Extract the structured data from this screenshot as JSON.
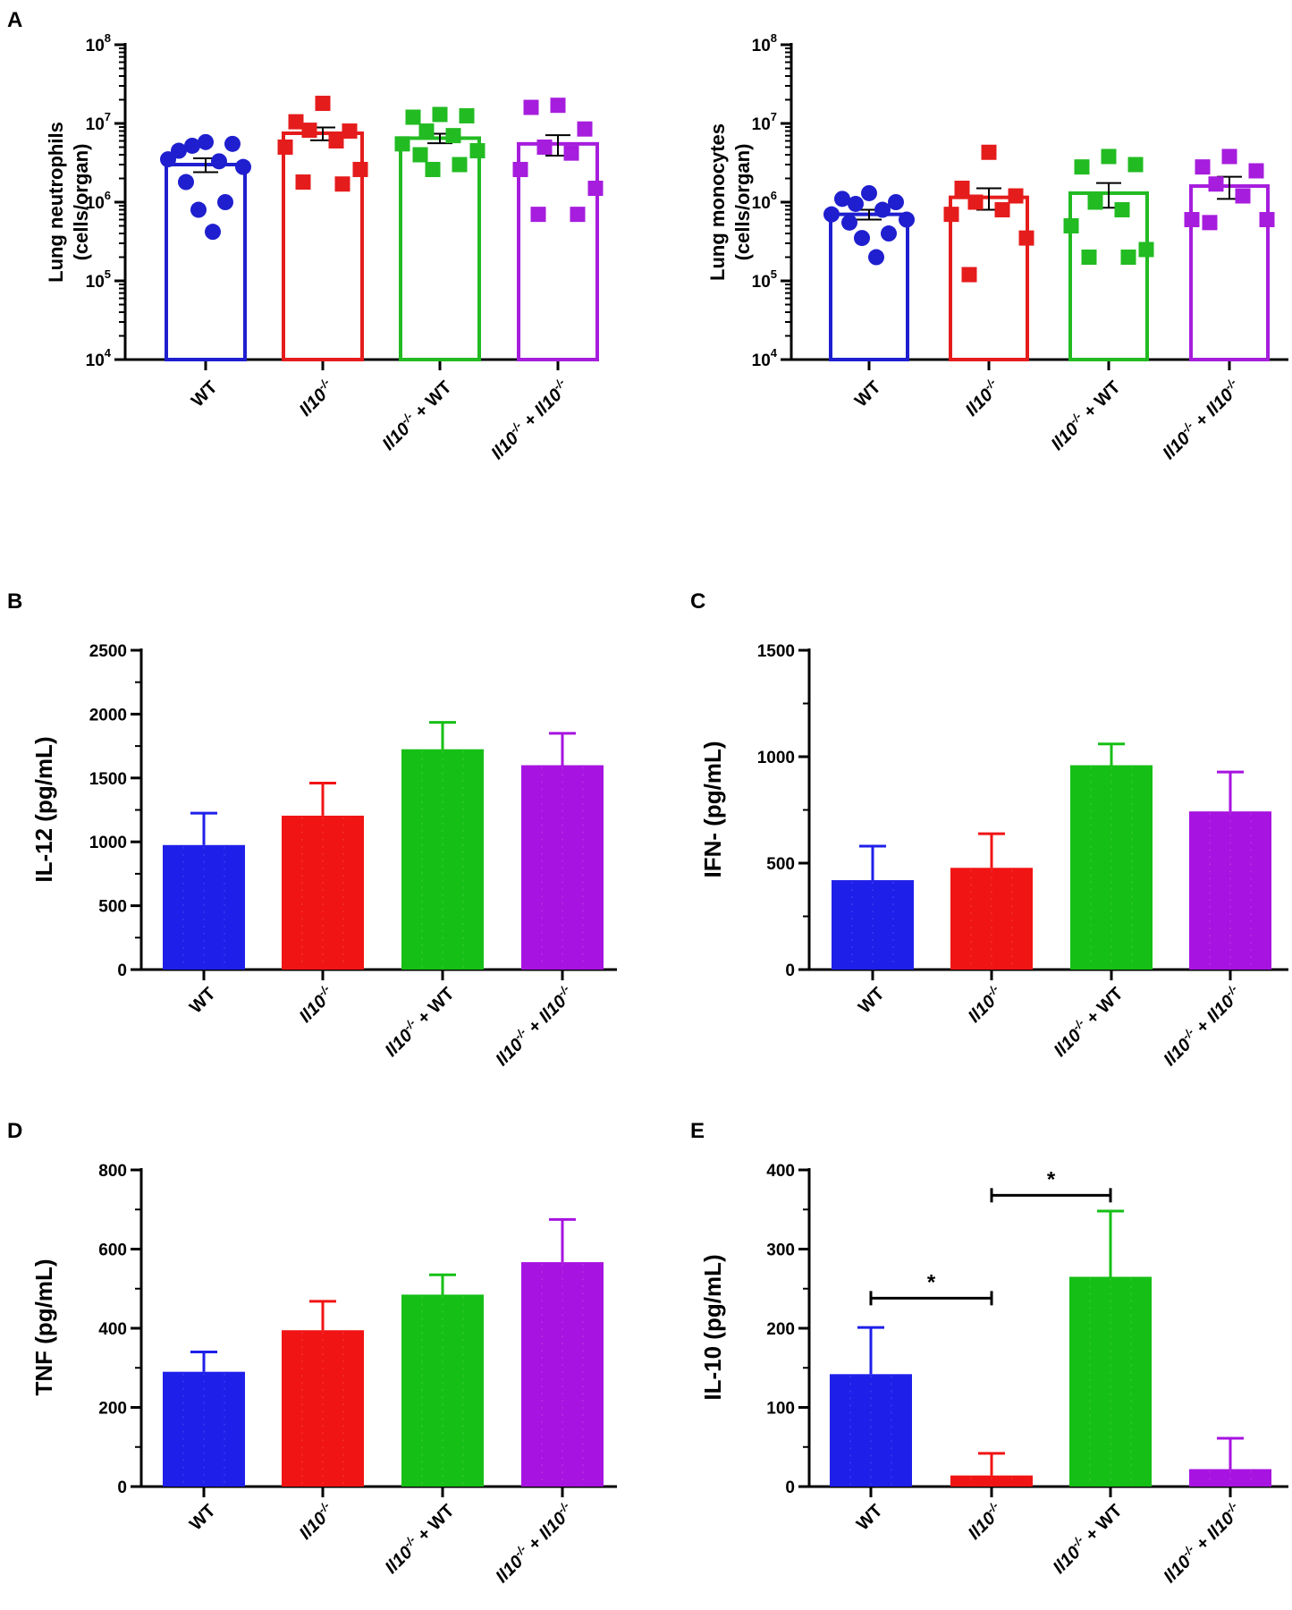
{
  "chart_data": [
    {
      "id": "A-left",
      "panel_label": "A",
      "type": "scatter",
      "yscale": "log",
      "ylabel_lines": [
        "Lung neutrophils",
        "(cells/organ)"
      ],
      "ylim": [
        10000,
        100000000
      ],
      "ytick_labels": [
        {
          "base": "10",
          "exp": "4"
        },
        {
          "base": "10",
          "exp": "5"
        },
        {
          "base": "10",
          "exp": "6"
        },
        {
          "base": "10",
          "exp": "7"
        },
        {
          "base": "10",
          "exp": "8"
        }
      ],
      "categories": [
        "WT",
        "Il10-/-",
        "Il10-/- + WT",
        "Il10-/- + Il10-/-"
      ],
      "series": [
        {
          "name": "WT",
          "color": "#1f1fcf",
          "marker": "circle",
          "mean": 3000000,
          "sem": 600000,
          "points": [
            5800000,
            4500000,
            5500000,
            5200000,
            3300000,
            3500000,
            2800000,
            1800000,
            1000000,
            800000,
            420000
          ]
        },
        {
          "name": "Il10-/-",
          "color": "#e51c1c",
          "marker": "square",
          "mean": 7500000,
          "sem": 1400000,
          "points": [
            18000000,
            10500000,
            8000000,
            8200000,
            6000000,
            5000000,
            2600000,
            1800000,
            1700000
          ]
        },
        {
          "name": "Il10-/- + WT",
          "color": "#22bb22",
          "marker": "square",
          "mean": 6500000,
          "sem": 900000,
          "points": [
            13000000,
            12000000,
            12500000,
            8000000,
            7000000,
            5500000,
            4500000,
            4000000,
            3000000,
            2600000
          ]
        },
        {
          "name": "Il10-/- + Il10-/-",
          "color": "#a61ddd",
          "marker": "square",
          "mean": 5500000,
          "sem": 1600000,
          "points": [
            17000000,
            16000000,
            8500000,
            5000000,
            4200000,
            2600000,
            1500000,
            700000,
            700000
          ]
        }
      ]
    },
    {
      "id": "A-right",
      "panel_label": "",
      "type": "scatter",
      "yscale": "log",
      "ylabel_lines": [
        "Lung monocytes",
        "(cells/organ)"
      ],
      "ylim": [
        10000,
        100000000
      ],
      "ytick_labels": [
        {
          "base": "10",
          "exp": "4"
        },
        {
          "base": "10",
          "exp": "5"
        },
        {
          "base": "10",
          "exp": "6"
        },
        {
          "base": "10",
          "exp": "7"
        },
        {
          "base": "10",
          "exp": "8"
        }
      ],
      "categories": [
        "WT",
        "Il10-/-",
        "Il10-/- + WT",
        "Il10-/- + Il10-/-"
      ],
      "series": [
        {
          "name": "WT",
          "color": "#1f1fcf",
          "marker": "circle",
          "mean": 700000,
          "sem": 100000,
          "points": [
            1300000,
            1100000,
            1000000,
            950000,
            800000,
            700000,
            600000,
            550000,
            400000,
            350000,
            200000
          ]
        },
        {
          "name": "Il10-/-",
          "color": "#e51c1c",
          "marker": "square",
          "mean": 1150000,
          "sem": 350000,
          "points": [
            4300000,
            1500000,
            1200000,
            1000000,
            800000,
            700000,
            350000,
            120000
          ]
        },
        {
          "name": "Il10-/- + WT",
          "color": "#22bb22",
          "marker": "square",
          "mean": 1300000,
          "sem": 450000,
          "points": [
            3800000,
            2800000,
            3000000,
            1000000,
            800000,
            500000,
            250000,
            200000,
            200000
          ]
        },
        {
          "name": "Il10-/- + Il10-/-",
          "color": "#a61ddd",
          "marker": "square",
          "mean": 1600000,
          "sem": 500000,
          "points": [
            3800000,
            2800000,
            2500000,
            1700000,
            1200000,
            600000,
            600000,
            550000
          ]
        }
      ]
    },
    {
      "id": "B",
      "panel_label": "B",
      "type": "bar",
      "ylabel": "IL-12 (pg/mL)",
      "ylim": [
        0,
        2500
      ],
      "yticks": [
        0,
        500,
        1000,
        1500,
        2000,
        2500
      ],
      "categories": [
        "WT",
        "Il10-/-",
        "Il10-/- + WT",
        "Il10-/- + Il10-/-"
      ],
      "colors": [
        "#1f1fea",
        "#f11414",
        "#16bf16",
        "#a713e0"
      ],
      "values": [
        975,
        1205,
        1725,
        1600
      ],
      "errors": [
        250,
        255,
        210,
        250
      ]
    },
    {
      "id": "C",
      "panel_label": "C",
      "type": "bar",
      "ylabel": "IFN-  (pg/mL)",
      "ylim": [
        0,
        1500
      ],
      "yticks": [
        0,
        500,
        1000,
        1500
      ],
      "categories": [
        "WT",
        "Il10-/-",
        "Il10-/- + WT",
        "Il10-/- + Il10-/-"
      ],
      "colors": [
        "#1f1fea",
        "#f11414",
        "#16bf16",
        "#a713e0"
      ],
      "values": [
        420,
        478,
        960,
        743
      ],
      "errors": [
        160,
        160,
        100,
        185
      ]
    },
    {
      "id": "D",
      "panel_label": "D",
      "type": "bar",
      "ylabel": "TNF (pg/mL)",
      "ylim": [
        0,
        800
      ],
      "yticks": [
        0,
        200,
        400,
        600,
        800
      ],
      "categories": [
        "WT",
        "Il10-/-",
        "Il10-/- + WT",
        "Il10-/- + Il10-/-"
      ],
      "colors": [
        "#1f1fea",
        "#f11414",
        "#16bf16",
        "#a713e0"
      ],
      "values": [
        290,
        395,
        485,
        567
      ],
      "errors": [
        50,
        73,
        50,
        108
      ]
    },
    {
      "id": "E",
      "panel_label": "E",
      "type": "bar",
      "ylabel": "IL-10 (pg/mL)",
      "ylim": [
        0,
        400
      ],
      "yticks": [
        0,
        100,
        200,
        300,
        400
      ],
      "categories": [
        "WT",
        "Il10-/-",
        "Il10-/- + WT",
        "Il10-/- + Il10-/-"
      ],
      "colors": [
        "#1f1fea",
        "#f11414",
        "#16bf16",
        "#a713e0"
      ],
      "values": [
        142,
        14,
        265,
        22
      ],
      "errors": [
        59,
        28,
        83,
        39
      ],
      "significance": [
        {
          "from": 0,
          "to": 1,
          "label": "*",
          "y": 238
        },
        {
          "from": 1,
          "to": 2,
          "label": "*",
          "y": 368
        }
      ]
    }
  ]
}
